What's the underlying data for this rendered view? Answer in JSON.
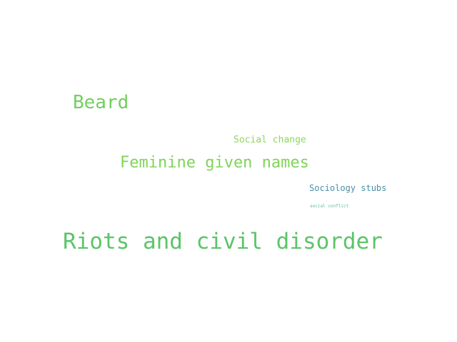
{
  "words": [
    {
      "text": "Beard",
      "color": "#72cf5e"
    },
    {
      "text": "Social change",
      "color": "#8fd85a"
    },
    {
      "text": "Feminine given names",
      "color": "#7fd458"
    },
    {
      "text": "Sociology stubs",
      "color": "#4a90a8"
    },
    {
      "text": "social conflict",
      "color": "#5ab8a0"
    },
    {
      "text": "Riots and civil disorder",
      "color": "#5cc46a"
    }
  ]
}
